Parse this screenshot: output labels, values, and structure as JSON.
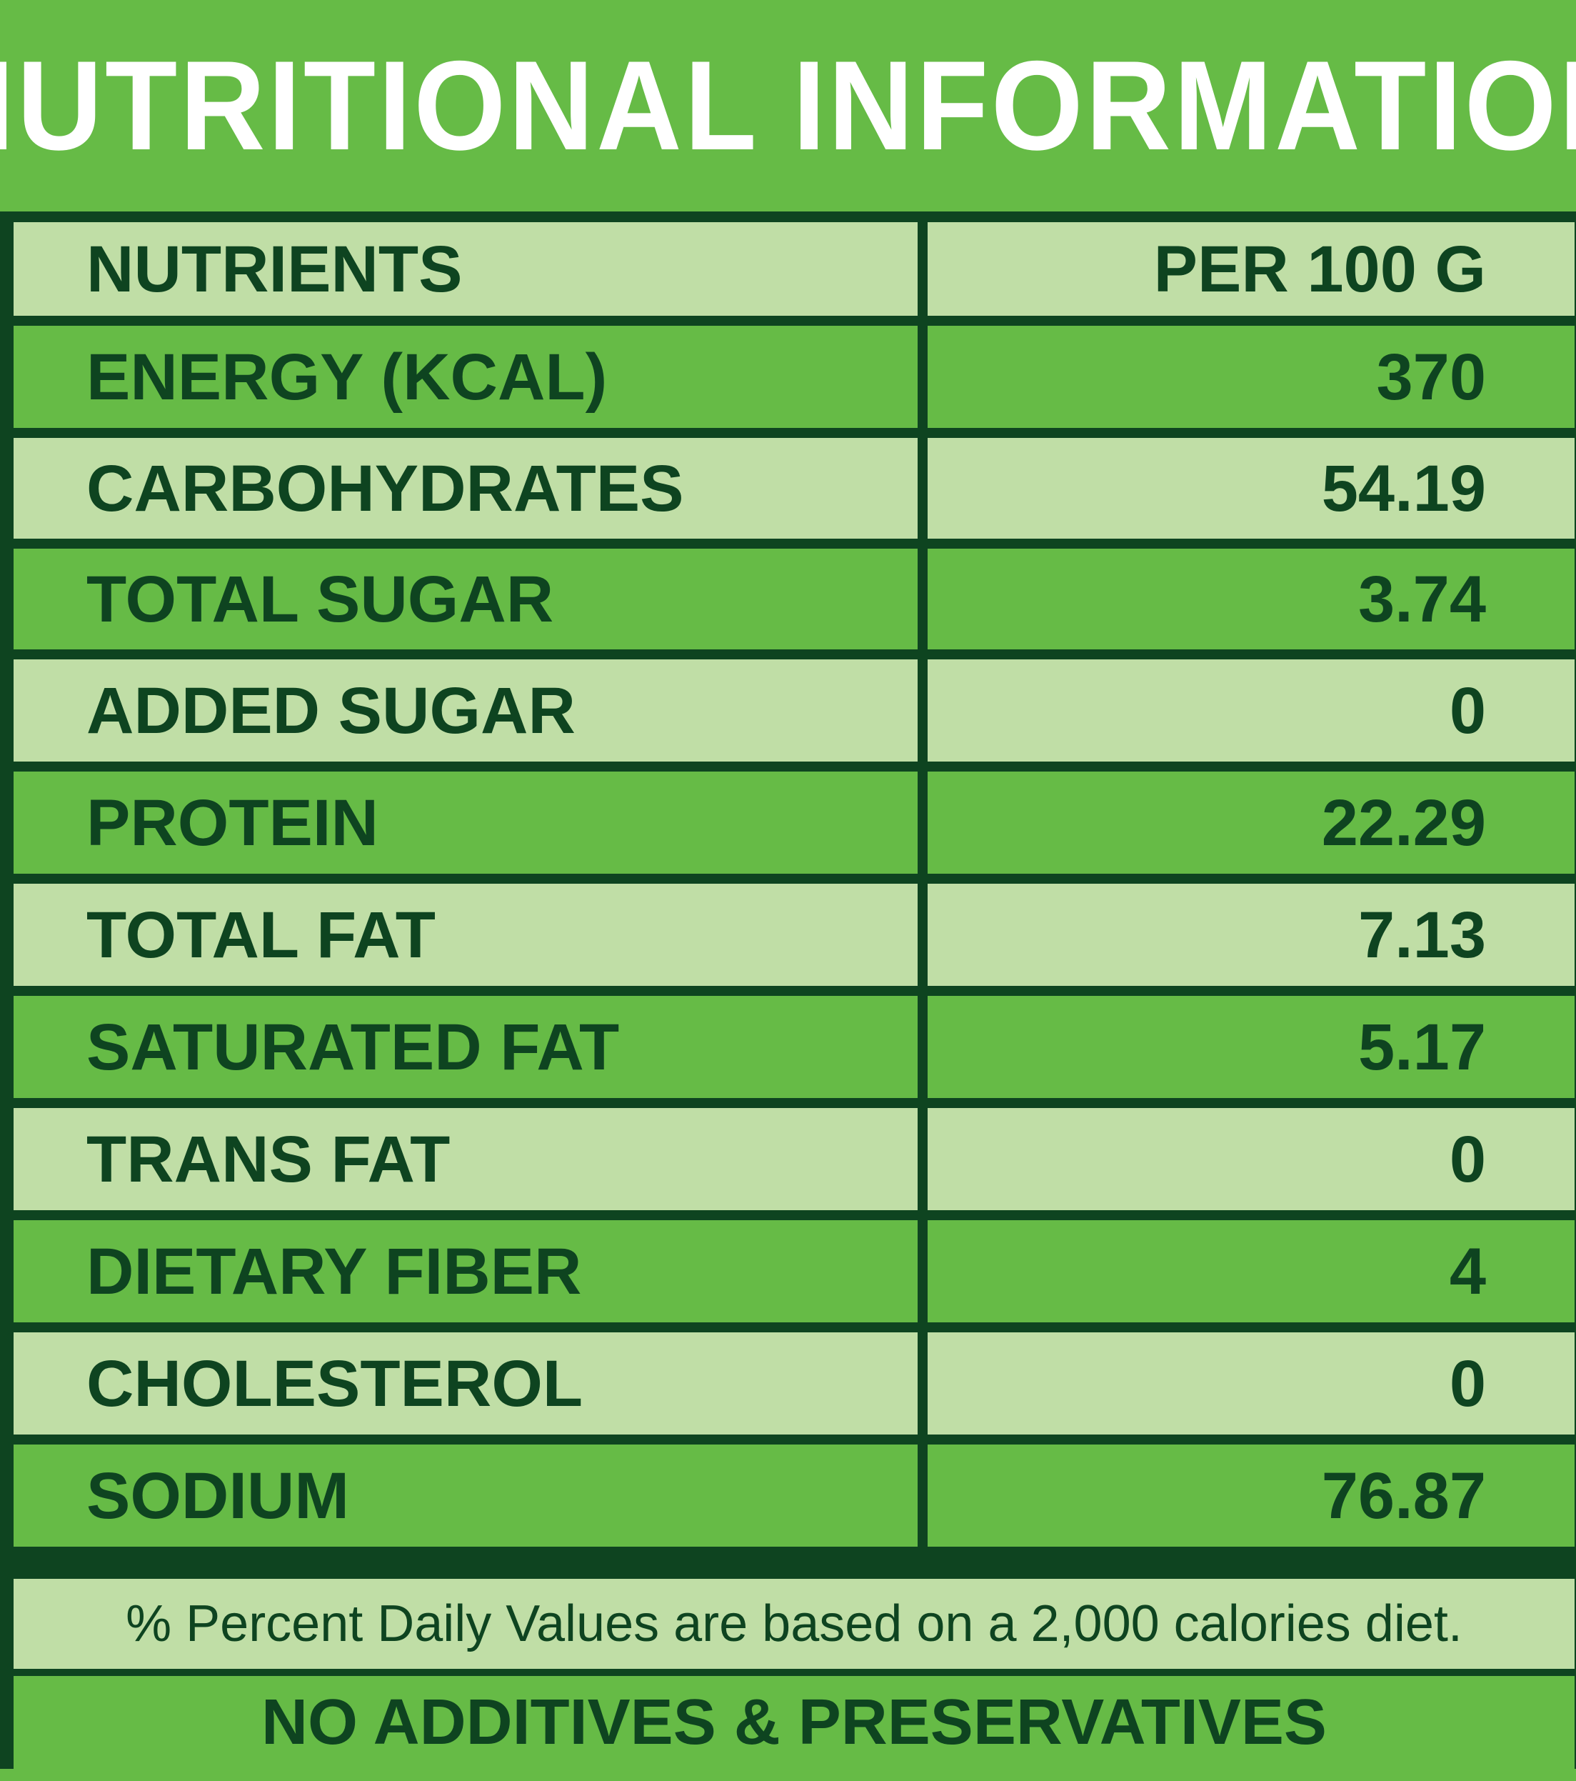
{
  "title": "NUTRITIONAL INFORMATION",
  "header": {
    "nutrients_label": "NUTRIENTS",
    "per_label": "PER 100 G"
  },
  "rows": [
    {
      "name": "ENERGY (KCAL)",
      "value": "370"
    },
    {
      "name": "CARBOHYDRATES",
      "value": "54.19"
    },
    {
      "name": "TOTAL SUGAR",
      "value": "3.74"
    },
    {
      "name": "ADDED SUGAR",
      "value": "0"
    },
    {
      "name": "PROTEIN",
      "value": "22.29"
    },
    {
      "name": "TOTAL FAT",
      "value": "7.13"
    },
    {
      "name": "SATURATED FAT",
      "value": "5.17"
    },
    {
      "name": "TRANS FAT",
      "value": "0"
    },
    {
      "name": "DIETARY FIBER",
      "value": "4"
    },
    {
      "name": "CHOLESTEROL",
      "value": "0"
    },
    {
      "name": "SODIUM",
      "value": "76.87"
    }
  ],
  "footnote": "% Percent Daily Values are based on a 2,000 calories diet.",
  "banner": "NO ADDITIVES & PRESERVATIVES",
  "colors": {
    "dark_green": "#0e4420",
    "medium_green": "#66bb46",
    "light_green": "#c0dea6",
    "white": "#ffffff"
  }
}
